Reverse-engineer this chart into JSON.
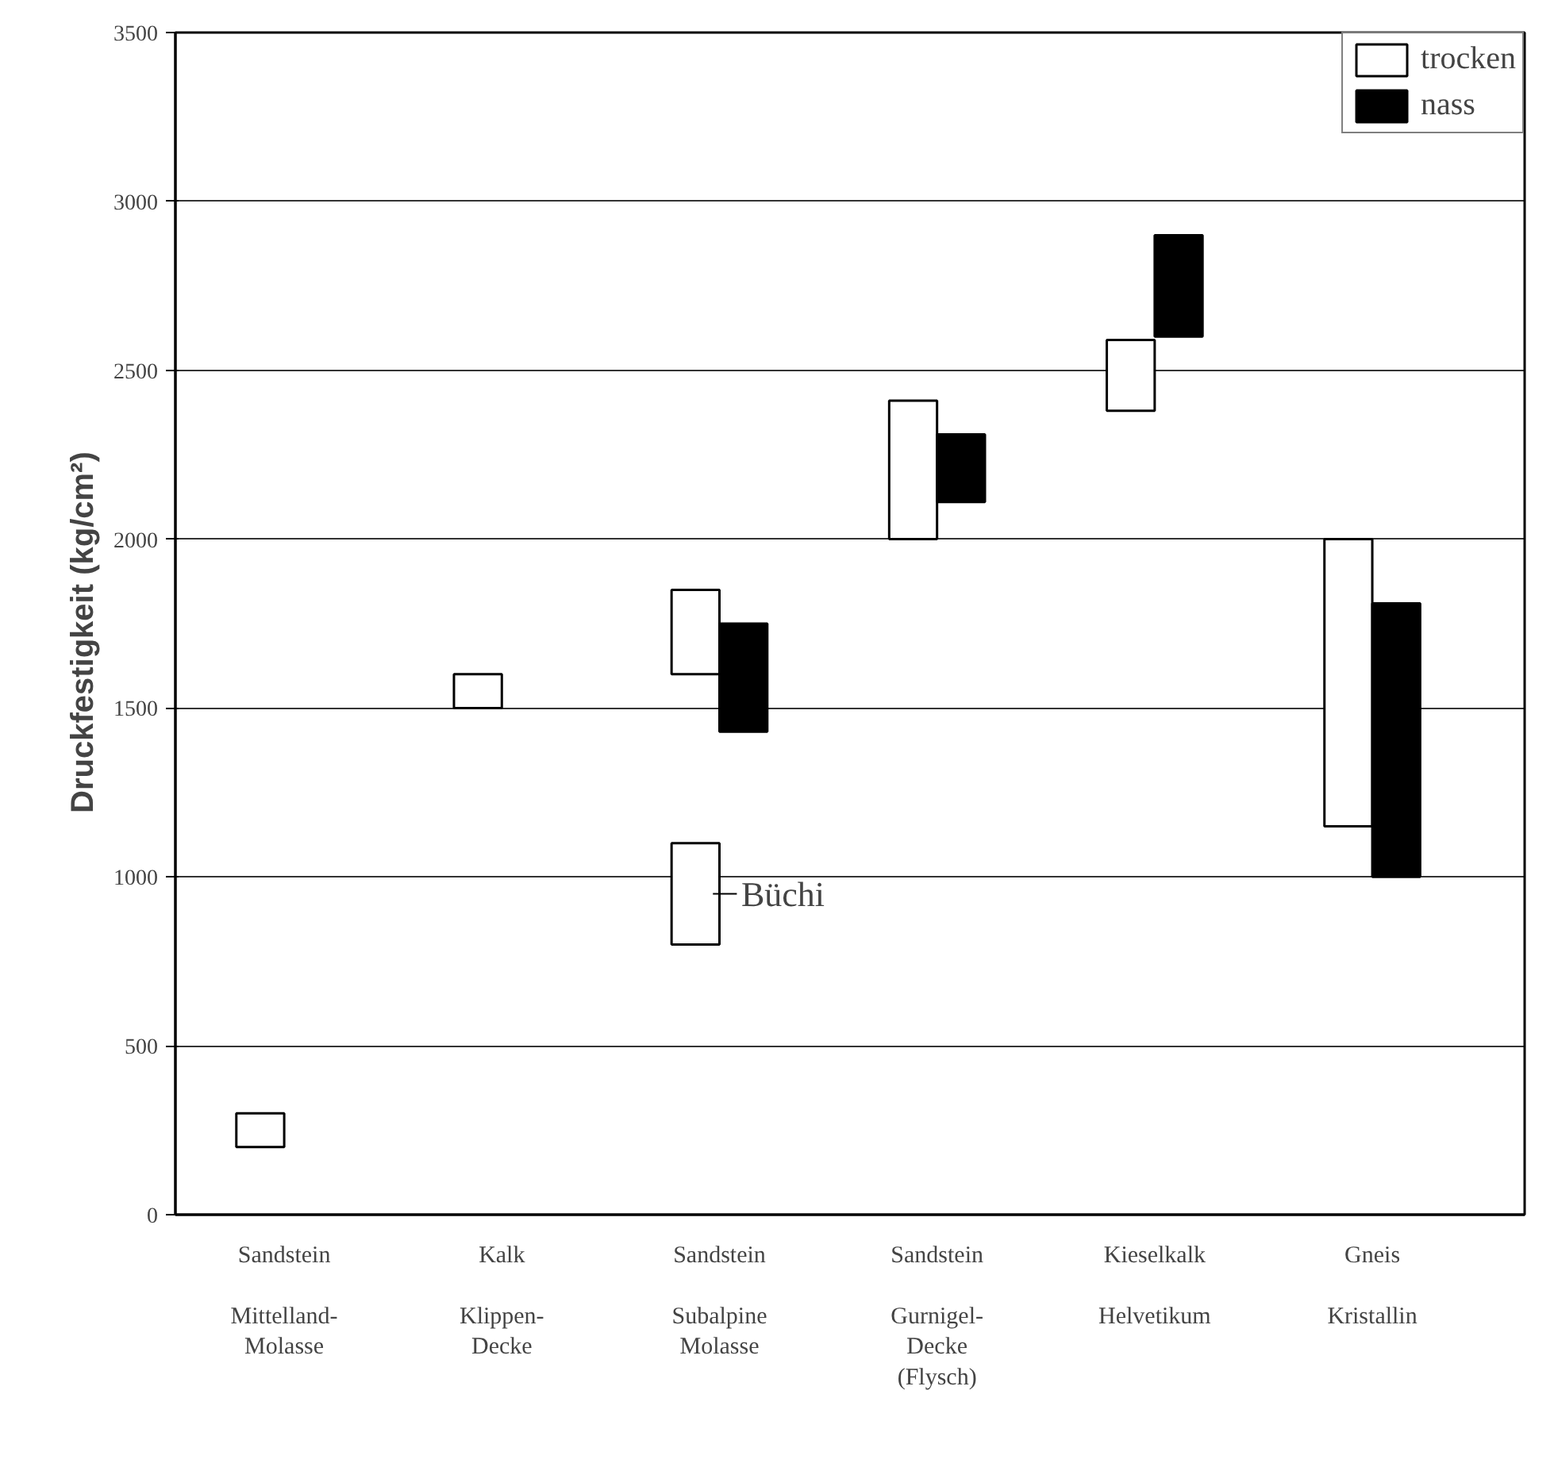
{
  "chart_data": {
    "type": "bar",
    "ylabel": "Druckfestigkeit   (kg/cm²)",
    "categories": [
      "Sandstein\n\nMittelland-\nMolasse",
      "Kalk\n\nKlippen-\nDecke",
      "Sandstein\n\nSubalpine\nMolasse",
      "Sandstein\n\nGurnigel-\nDecke\n(Flysch)",
      "Kieselkalk\n\nHelvetikum",
      "Gneis\n\nKristallin"
    ],
    "series": [
      {
        "name": "trocken",
        "color": "#ffffff",
        "base": [
          200,
          1500,
          1600,
          2000,
          2380,
          1150
        ],
        "values": [
          100,
          100,
          250,
          410,
          210,
          850
        ]
      },
      {
        "name": "nass",
        "color": "#000000",
        "base": [
          null,
          null,
          1430,
          2110,
          2600,
          1000
        ],
        "values": [
          null,
          null,
          320,
          200,
          300,
          810
        ]
      },
      {
        "color": "#ffffff",
        "base": [
          null,
          null,
          800,
          null,
          null,
          null
        ],
        "values": [
          null,
          null,
          300,
          null,
          null,
          null
        ]
      }
    ],
    "ylim": [
      0,
      3500
    ],
    "yticks": [
      0,
      500,
      1000,
      1500,
      2000,
      2500,
      3000,
      3500
    ],
    "grid": "y",
    "legend": "top right",
    "annotations": [
      "Büchi"
    ]
  }
}
